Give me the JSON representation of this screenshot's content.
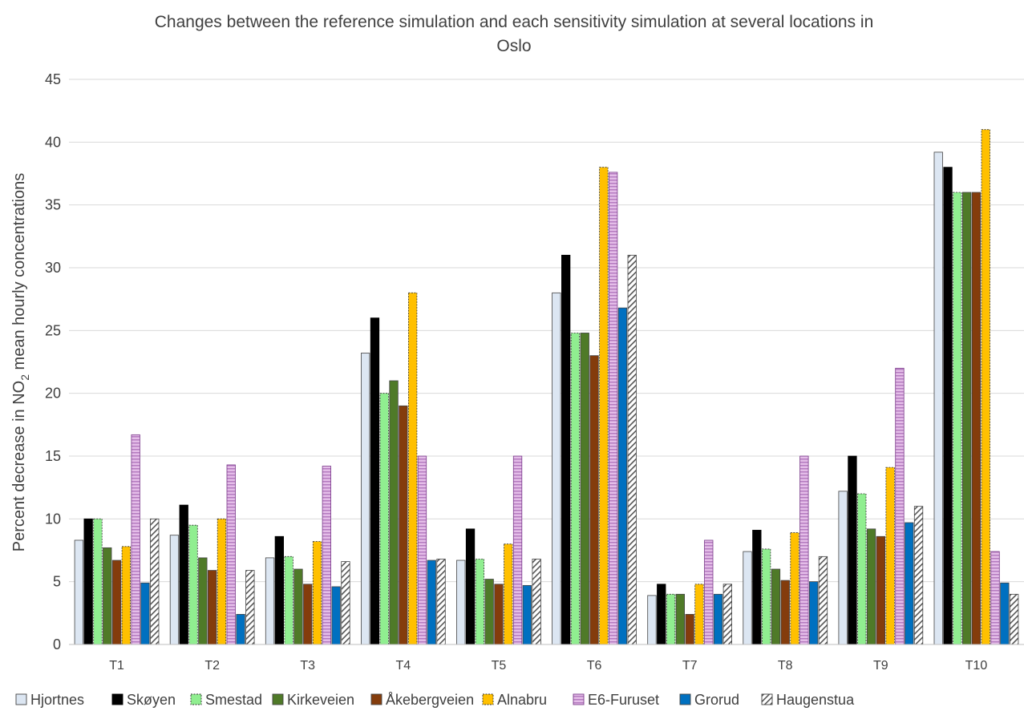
{
  "chart_data": {
    "type": "bar",
    "title_line1": "Changes between the reference simulation and each sensitivity simulation at several locations in",
    "title_line2": "Oslo",
    "ylabel_prefix": "Percent decrease in NO",
    "ylabel_subscript": "2",
    "ylabel_suffix": " mean hourly concentrations",
    "xlabel": "",
    "ylim": [
      0,
      45
    ],
    "yticks": [
      "0",
      "5",
      "10",
      "15",
      "20",
      "25",
      "30",
      "35",
      "40",
      "45"
    ],
    "grid": true,
    "legend_position": "bottom",
    "categories": [
      "T1",
      "T2",
      "T3",
      "T4",
      "T5",
      "T6",
      "T7",
      "T8",
      "T9",
      "T10"
    ],
    "series": [
      {
        "name": "Hjortnes",
        "color": "#dce6f2",
        "pattern": "none",
        "values": [
          8.3,
          8.7,
          6.9,
          23.2,
          6.7,
          28.0,
          3.9,
          7.4,
          12.2,
          39.2
        ]
      },
      {
        "name": "Skøyen",
        "color": "#000000",
        "pattern": "none",
        "values": [
          10.0,
          11.1,
          8.6,
          26.0,
          9.2,
          31.0,
          4.8,
          9.1,
          15.0,
          38.0
        ]
      },
      {
        "name": "Smestad",
        "color": "#90ee90",
        "pattern": "dashed-border",
        "values": [
          10.0,
          9.5,
          7.0,
          20.0,
          6.8,
          24.8,
          4.0,
          7.6,
          12.0,
          36.0
        ]
      },
      {
        "name": "Kirkeveien",
        "color": "#4f7a28",
        "pattern": "none",
        "values": [
          7.7,
          6.9,
          6.0,
          21.0,
          5.2,
          24.8,
          4.0,
          6.0,
          9.2,
          36.0
        ]
      },
      {
        "name": "Åkebergveien",
        "color": "#843c0c",
        "pattern": "none",
        "values": [
          6.7,
          5.9,
          4.8,
          19.0,
          4.8,
          23.0,
          2.4,
          5.1,
          8.6,
          36.0
        ]
      },
      {
        "name": "Alnabru",
        "color": "#ffc000",
        "pattern": "dashed-border",
        "values": [
          7.8,
          10.0,
          8.2,
          28.0,
          8.0,
          38.0,
          4.8,
          8.9,
          14.1,
          41.0
        ]
      },
      {
        "name": "E6-Furuset",
        "color": "#e4bde8",
        "pattern": "horizontal-stripes",
        "values": [
          16.7,
          14.3,
          14.2,
          15.0,
          15.0,
          37.6,
          8.3,
          15.0,
          22.0,
          7.4
        ]
      },
      {
        "name": "Grorud",
        "color": "#0070c0",
        "pattern": "none",
        "values": [
          4.9,
          2.4,
          4.6,
          6.7,
          4.7,
          26.8,
          4.0,
          5.0,
          9.7,
          4.9
        ]
      },
      {
        "name": "Haugenstua",
        "color": "#d9d9d9",
        "pattern": "diagonal-hatch",
        "values": [
          10.0,
          5.9,
          6.6,
          6.8,
          6.8,
          31.0,
          4.8,
          7.0,
          11.0,
          4.0
        ]
      }
    ]
  }
}
